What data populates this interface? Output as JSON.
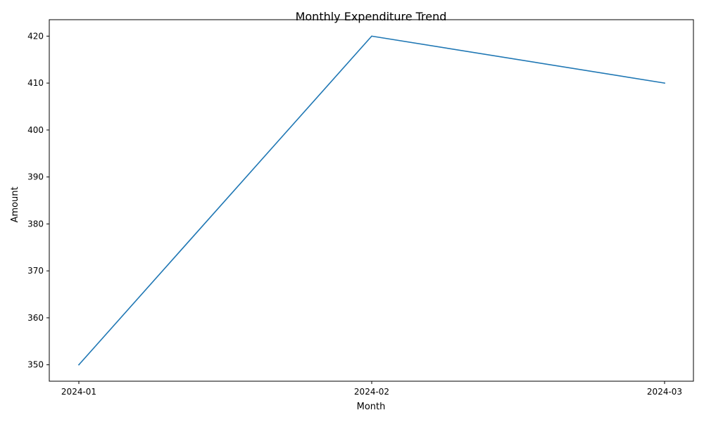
{
  "chart_data": {
    "type": "line",
    "title": "Monthly Expenditure Trend",
    "xlabel": "Month",
    "ylabel": "Amount",
    "categories": [
      "2024-01",
      "2024-02",
      "2024-03"
    ],
    "series": [
      {
        "values": [
          350,
          420,
          410
        ],
        "color": "#1f77b4"
      }
    ],
    "ylim": [
      346.5,
      423.5
    ],
    "yticks": [
      350,
      360,
      370,
      380,
      390,
      400,
      410,
      420
    ],
    "grid": false,
    "legend": "none"
  }
}
